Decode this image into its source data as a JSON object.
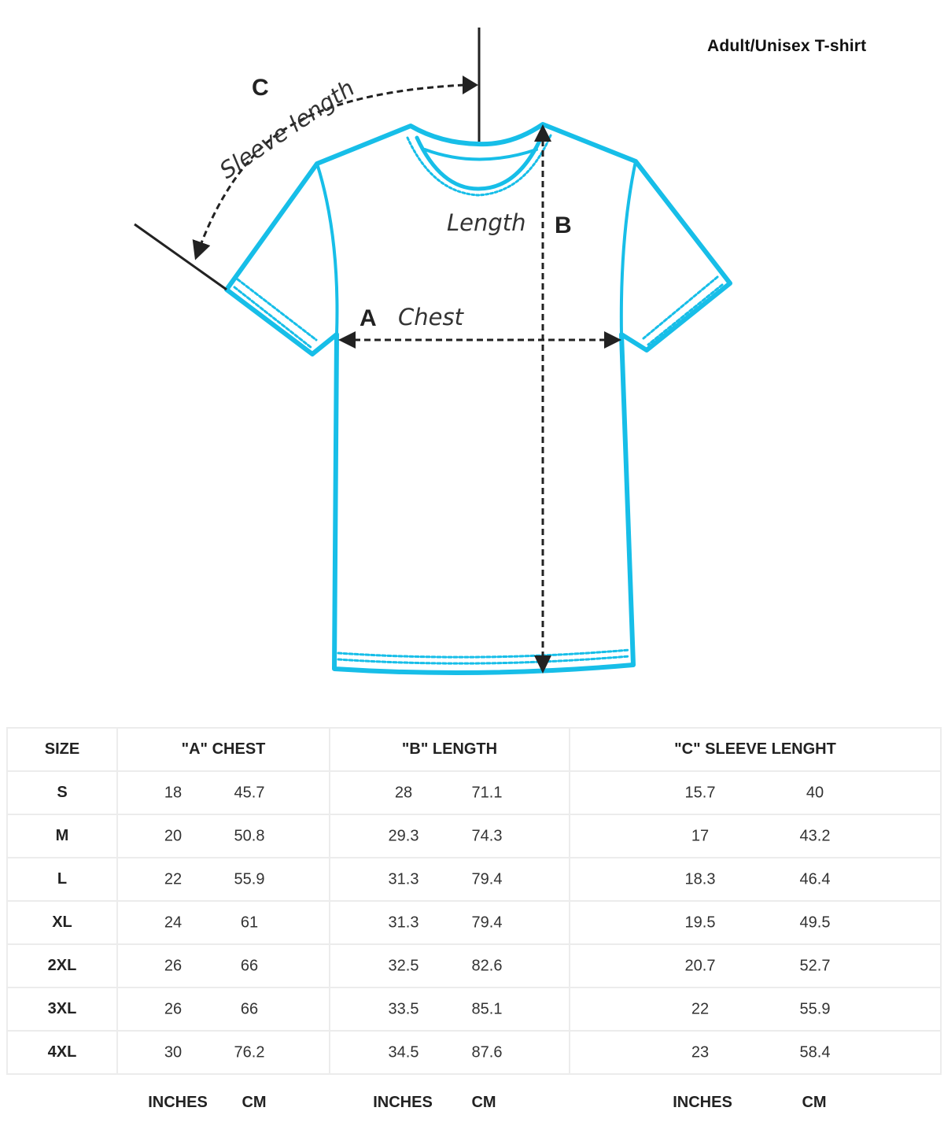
{
  "title": "Adult/Unisex T-shirt",
  "colors": {
    "shirt_outline": "#17BEE8",
    "annotation": "#222222",
    "grid": "#ececec"
  },
  "diagram": {
    "sleeve_letter": "C",
    "sleeve_label": "Sleeve length",
    "length_letter": "B",
    "length_label": "Length",
    "chest_letter": "A",
    "chest_label": "Chest"
  },
  "table": {
    "headers": [
      "SIZE",
      "\"A\" CHEST",
      "\"B\" LENGTH",
      "\"C\" SLEEVE LENGHT"
    ],
    "rows": [
      {
        "size": "S",
        "chest_in": "18",
        "chest_cm": "45.7",
        "length_in": "28",
        "length_cm": "71.1",
        "sleeve_in": "15.7",
        "sleeve_cm": "40"
      },
      {
        "size": "M",
        "chest_in": "20",
        "chest_cm": "50.8",
        "length_in": "29.3",
        "length_cm": "74.3",
        "sleeve_in": "17",
        "sleeve_cm": "43.2"
      },
      {
        "size": "L",
        "chest_in": "22",
        "chest_cm": "55.9",
        "length_in": "31.3",
        "length_cm": "79.4",
        "sleeve_in": "18.3",
        "sleeve_cm": "46.4"
      },
      {
        "size": "XL",
        "chest_in": "24",
        "chest_cm": "61",
        "length_in": "31.3",
        "length_cm": "79.4",
        "sleeve_in": "19.5",
        "sleeve_cm": "49.5"
      },
      {
        "size": "2XL",
        "chest_in": "26",
        "chest_cm": "66",
        "length_in": "32.5",
        "length_cm": "82.6",
        "sleeve_in": "20.7",
        "sleeve_cm": "52.7"
      },
      {
        "size": "3XL",
        "chest_in": "26",
        "chest_cm": "66",
        "length_in": "33.5",
        "length_cm": "85.1",
        "sleeve_in": "22",
        "sleeve_cm": "55.9"
      },
      {
        "size": "4XL",
        "chest_in": "30",
        "chest_cm": "76.2",
        "length_in": "34.5",
        "length_cm": "87.6",
        "sleeve_in": "23",
        "sleeve_cm": "58.4"
      }
    ],
    "units": {
      "inches": "INCHES",
      "cm": "CM"
    }
  }
}
